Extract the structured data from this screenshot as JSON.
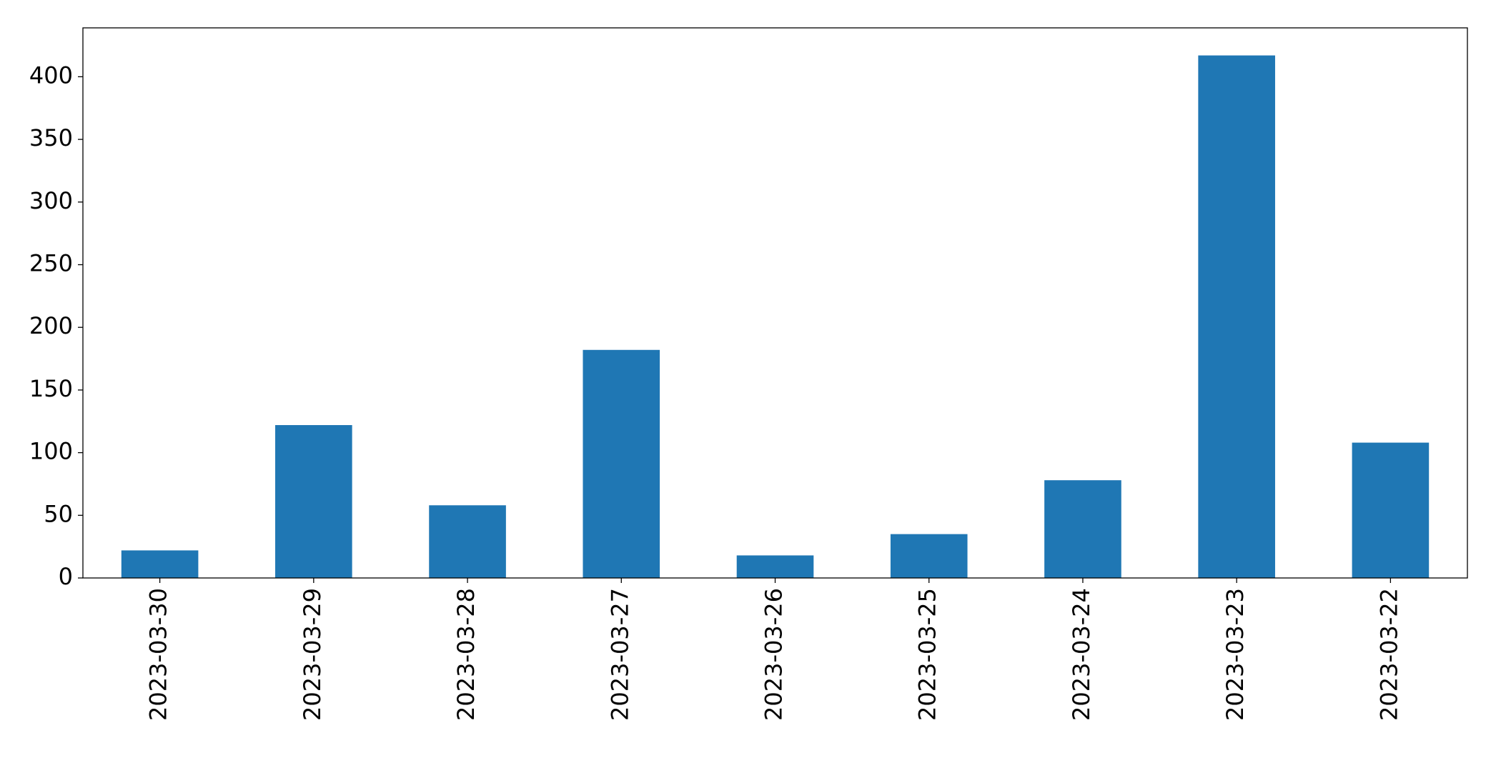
{
  "chart_data": {
    "type": "bar",
    "categories": [
      "2023-03-30",
      "2023-03-29",
      "2023-03-28",
      "2023-03-27",
      "2023-03-26",
      "2023-03-25",
      "2023-03-24",
      "2023-03-23",
      "2023-03-22"
    ],
    "values": [
      22,
      122,
      58,
      182,
      18,
      35,
      78,
      417,
      108
    ],
    "color": "#1f77b4",
    "ylim": [
      0,
      439
    ],
    "yticks": [
      0,
      50,
      100,
      150,
      200,
      250,
      300,
      350,
      400
    ],
    "grid": false
  }
}
